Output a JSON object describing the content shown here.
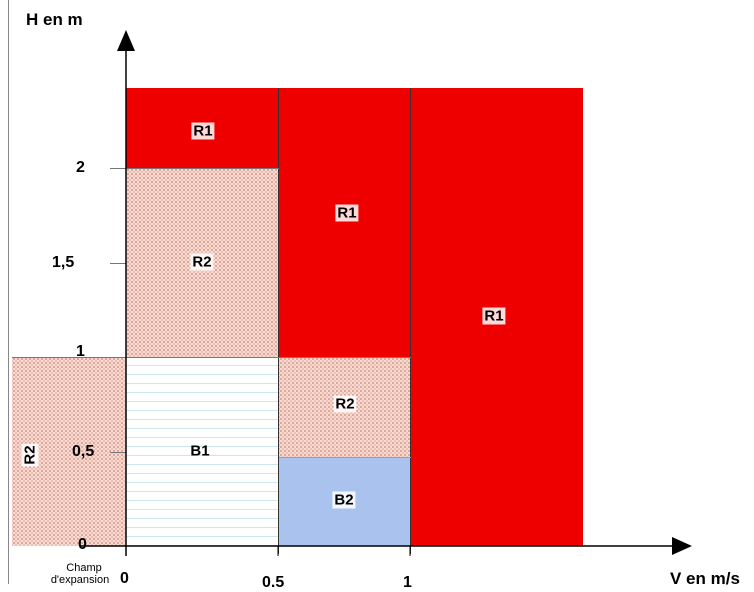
{
  "axes": {
    "y_label": "H en m",
    "x_label": "V en m/s",
    "y_ticks": [
      "0",
      "0,5",
      "1",
      "1,5",
      "2"
    ],
    "x_ticks": [
      "0",
      "0.5",
      "1"
    ],
    "expansion_line1": "Champ",
    "expansion_line2": "d'expansion"
  },
  "zones": {
    "r1_top": "R1",
    "r1_mid": "R1",
    "r1_right": "R1",
    "r2_upper": "R2",
    "r2_mid": "R2",
    "r2_expansion": "R2",
    "b1": "B1",
    "b2": "B2"
  },
  "colors": {
    "red": "#ee0000",
    "pink_dotted": "#f4dcd4",
    "blue": "#a9c2ee",
    "stripe": "#cde7f2"
  }
}
